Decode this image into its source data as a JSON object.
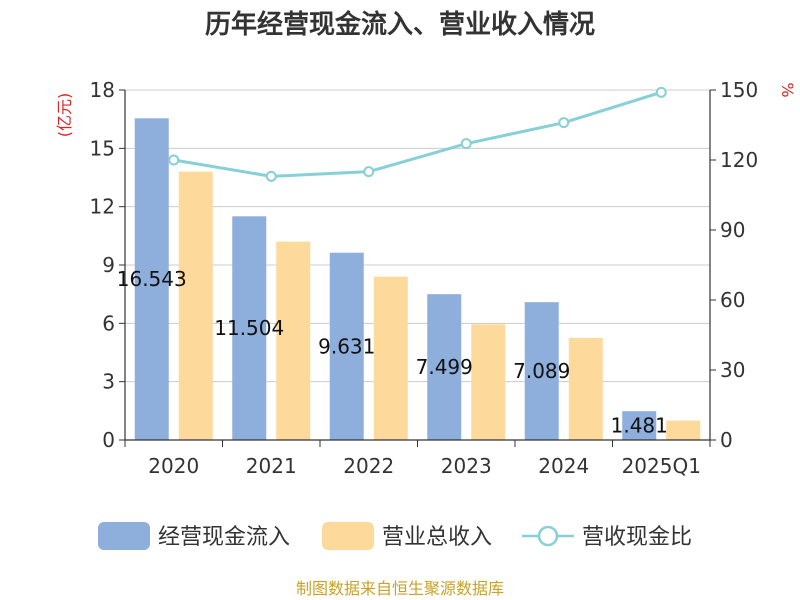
{
  "title": "历年经营现金流入、营业收入情况",
  "source": "制图数据来自恒生聚源数据库",
  "chart_data": {
    "type": "bar",
    "title": "历年经营现金流入、营业收入情况",
    "categories": [
      "2020",
      "2021",
      "2022",
      "2023",
      "2024",
      "2025Q1"
    ],
    "y_left": {
      "unit": "(亿元)",
      "range": [
        0,
        18
      ],
      "ticks": [
        "0",
        "3",
        "6",
        "9",
        "12",
        "15",
        "18"
      ]
    },
    "y_right": {
      "unit": "%",
      "range": [
        0,
        150
      ],
      "ticks": [
        "0",
        "30",
        "60",
        "90",
        "120",
        "150"
      ]
    },
    "series": [
      {
        "name": "经营现金流入",
        "type": "bar",
        "axis": "left",
        "color": "#8eaedc",
        "values": [
          16.543,
          11.504,
          9.631,
          7.499,
          7.089,
          1.481
        ],
        "labels": [
          "16.543",
          "11.504",
          "9.631",
          "7.499",
          "7.089",
          "1.481"
        ]
      },
      {
        "name": "营业总收入",
        "type": "bar",
        "axis": "left",
        "color": "#fdd99b",
        "values": [
          13.8,
          10.2,
          8.4,
          5.95,
          5.25,
          1.0
        ]
      },
      {
        "name": "营收现金比",
        "type": "line",
        "axis": "right",
        "color": "#86d0d6",
        "values": [
          120,
          113,
          115,
          127,
          136,
          149
        ]
      }
    ],
    "grid": true,
    "legend": "bottom"
  }
}
